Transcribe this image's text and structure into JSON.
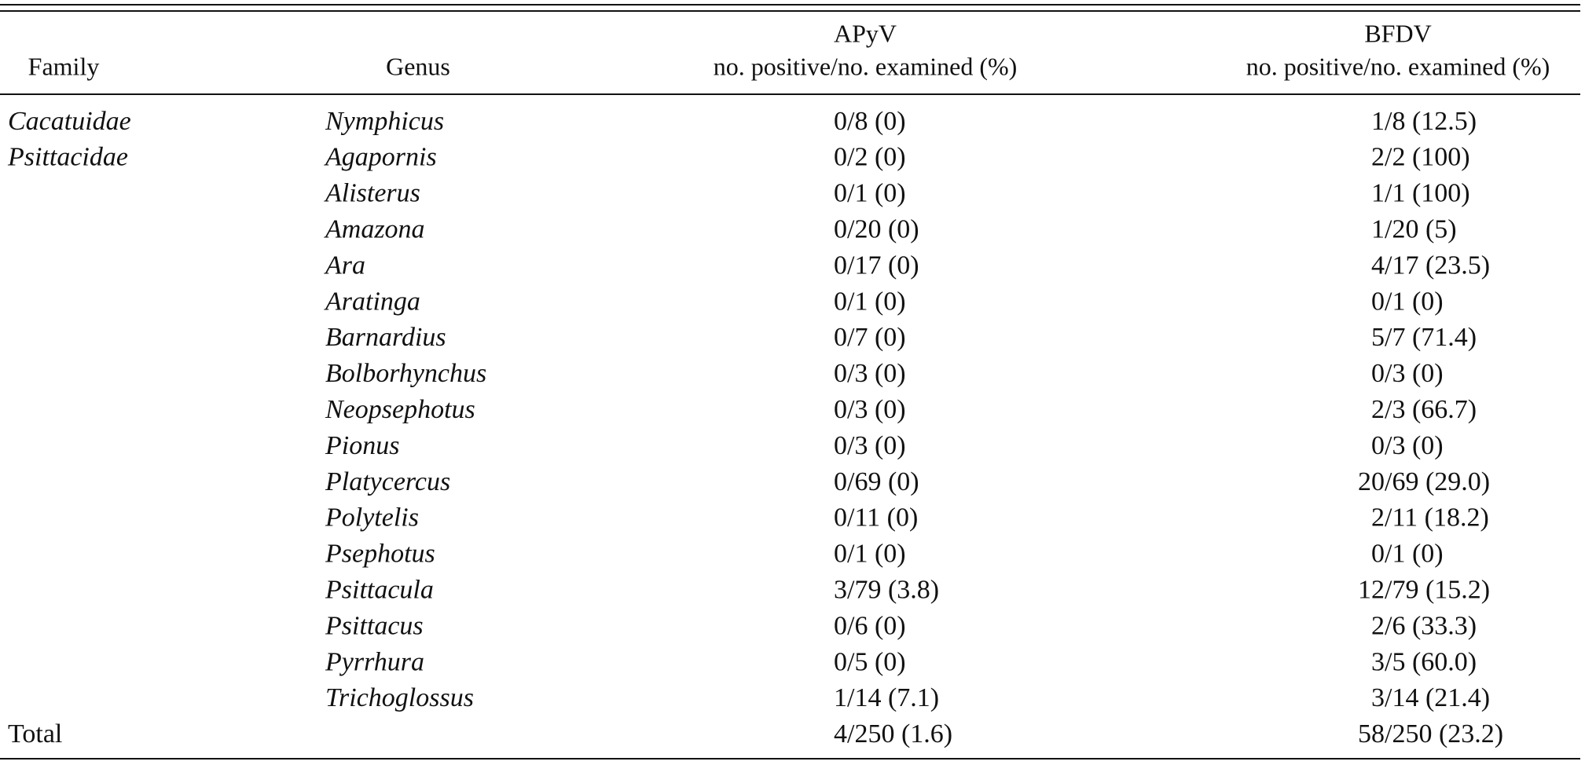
{
  "table": {
    "headers": {
      "family": "Family",
      "genus": "Genus",
      "apyv": {
        "title": "APyV",
        "subtitle": "no. positive/no. examined (%)"
      },
      "bfdv": {
        "title": "BFDV",
        "subtitle": "no. positive/no. examined (%)"
      }
    },
    "rows": [
      {
        "family": "Cacatuidae",
        "genus": "Nymphicus",
        "apyv": "0/8 (0)",
        "bfdv": "1/8 (12.5)"
      },
      {
        "family": "Psittacidae",
        "genus": "Agapornis",
        "apyv": "0/2 (0)",
        "bfdv": "2/2 (100)"
      },
      {
        "genus": "Alisterus",
        "apyv": "0/1 (0)",
        "bfdv": "1/1 (100)"
      },
      {
        "genus": "Amazona",
        "apyv": "0/20 (0)",
        "bfdv": "1/20 (5)"
      },
      {
        "genus": "Ara",
        "apyv": "0/17 (0)",
        "bfdv": "4/17 (23.5)"
      },
      {
        "genus": "Aratinga",
        "apyv": "0/1 (0)",
        "bfdv": "0/1 (0)"
      },
      {
        "genus": "Barnardius",
        "apyv": "0/7 (0)",
        "bfdv": "5/7 (71.4)"
      },
      {
        "genus": "Bolborhynchus",
        "apyv": "0/3 (0)",
        "bfdv": "0/3 (0)"
      },
      {
        "genus": "Neopsephotus",
        "apyv": "0/3 (0)",
        "bfdv": "2/3 (66.7)"
      },
      {
        "genus": "Pionus",
        "apyv": "0/3 (0)",
        "bfdv": "0/3 (0)"
      },
      {
        "genus": "Platycercus",
        "apyv": "0/69 (0)",
        "bfdv": "20/69 (29.0)"
      },
      {
        "genus": "Polytelis",
        "apyv": "0/11 (0)",
        "bfdv": "2/11 (18.2)"
      },
      {
        "genus": "Psephotus",
        "apyv": "0/1 (0)",
        "bfdv": "0/1 (0)"
      },
      {
        "genus": "Psittacula",
        "apyv": "3/79 (3.8)",
        "bfdv": "12/79 (15.2)"
      },
      {
        "genus": "Psittacus",
        "apyv": "0/6 (0)",
        "bfdv": "2/6 (33.3)"
      },
      {
        "genus": "Pyrrhura",
        "apyv": "0/5 (0)",
        "bfdv": "3/5 (60.0)"
      },
      {
        "genus": "Trichoglossus",
        "apyv": "1/14 (7.1)",
        "bfdv": "3/14 (21.4)"
      }
    ],
    "total": {
      "label": "Total",
      "apyv": "4/250 (1.6)",
      "bfdv": "58/250 (23.2)"
    }
  }
}
